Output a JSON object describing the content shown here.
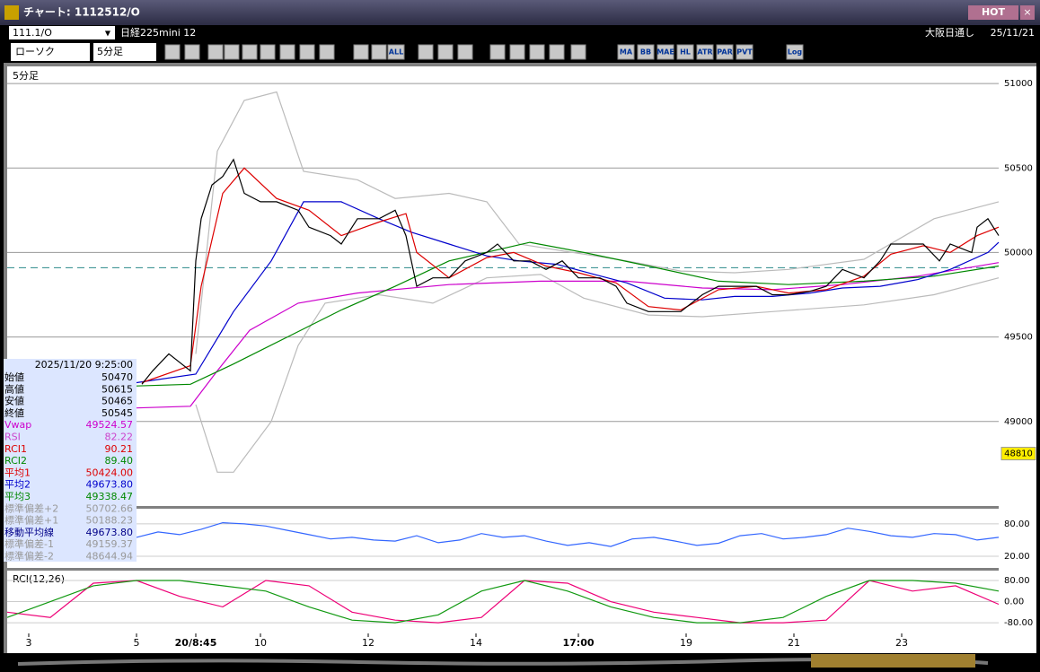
{
  "window": {
    "title": "チャート: 1112512/O",
    "hot": "HOT"
  },
  "toolbar": {
    "symbol": "111.1/O",
    "name": "日経225mini 12",
    "session": "大阪日通し",
    "date": "25/11/21",
    "chart_type": "ローソク",
    "interval": "5分足",
    "icons": [
      "ALL",
      "MA",
      "BB",
      "MAE",
      "HL",
      "ATR",
      "PAR",
      "PVT",
      "Log"
    ]
  },
  "chart_data": [
    {
      "type": "line",
      "title": "5分足",
      "xlim": [
        0,
        184
      ],
      "xticks": [
        {
          "value": 4,
          "label": "3"
        },
        {
          "value": 24,
          "label": "5"
        },
        {
          "value": 35,
          "label": "20/8:45"
        },
        {
          "value": 47,
          "label": "10"
        },
        {
          "value": 67,
          "label": "12"
        },
        {
          "value": 87,
          "label": "14"
        },
        {
          "value": 106,
          "label": "17:00"
        },
        {
          "value": 126,
          "label": "19"
        },
        {
          "value": 146,
          "label": "21"
        },
        {
          "value": 166,
          "label": "23"
        }
      ],
      "ylim": [
        48505,
        51096
      ],
      "yticks": [
        49000,
        49500,
        50000,
        50500,
        51000
      ],
      "grid": true,
      "reference_line": 49910,
      "last_price": 48810,
      "series": [
        {
          "color": "#bbbbbb",
          "x": [
            35,
            39,
            44,
            50,
            55,
            65,
            72,
            82,
            89,
            95,
            105,
            115,
            125,
            135,
            145,
            159,
            172,
            184
          ],
          "values": [
            49400,
            50600,
            50900,
            50950,
            50480,
            50430,
            50320,
            50350,
            50300,
            50050,
            50000,
            49950,
            49890,
            49880,
            49900,
            49960,
            50200,
            50300
          ]
        },
        {
          "color": "#bbbbbb",
          "x": [
            35,
            39,
            42,
            49,
            54,
            59,
            69,
            79,
            89,
            99,
            107,
            119,
            129,
            142,
            159,
            172,
            184
          ],
          "values": [
            49100,
            48700,
            48700,
            49000,
            49450,
            49700,
            49750,
            49700,
            49850,
            49870,
            49730,
            49630,
            49620,
            49650,
            49690,
            49750,
            49850
          ]
        },
        {
          "color": "#cc00cc",
          "x": [
            24,
            34,
            39,
            45,
            54,
            65,
            82,
            99,
            115,
            129,
            142,
            155,
            169,
            184
          ],
          "values": [
            49080,
            49090,
            49300,
            49540,
            49700,
            49760,
            49810,
            49830,
            49830,
            49790,
            49780,
            49810,
            49860,
            49940
          ]
        },
        {
          "color": "#008800",
          "x": [
            24,
            34,
            42,
            52,
            62,
            72,
            82,
            97,
            107,
            119,
            132,
            145,
            159,
            172,
            184
          ],
          "values": [
            49210,
            49220,
            49340,
            49500,
            49660,
            49800,
            49950,
            50060,
            50000,
            49920,
            49830,
            49810,
            49830,
            49860,
            49920
          ]
        },
        {
          "color": "#0000cc",
          "x": [
            24,
            35,
            42,
            49,
            55,
            62,
            69,
            75,
            82,
            89,
            95,
            102,
            109,
            115,
            122,
            129,
            135,
            142,
            149,
            155,
            162,
            169,
            175,
            182,
            184
          ],
          "values": [
            49230,
            49280,
            49650,
            49950,
            50300,
            50300,
            50200,
            50120,
            50050,
            49980,
            49950,
            49930,
            49870,
            49820,
            49730,
            49720,
            49740,
            49740,
            49760,
            49790,
            49800,
            49840,
            49900,
            50000,
            50060
          ]
        },
        {
          "color": "#dd0000",
          "x": [
            25,
            34,
            36,
            40,
            44,
            50,
            56,
            62,
            69,
            74,
            76,
            82,
            89,
            94,
            100,
            106,
            113,
            119,
            125,
            132,
            139,
            145,
            152,
            159,
            164,
            170,
            175,
            180,
            184
          ],
          "values": [
            49230,
            49330,
            49800,
            50350,
            50500,
            50320,
            50250,
            50100,
            50180,
            50230,
            50000,
            49850,
            49970,
            50000,
            49920,
            49880,
            49820,
            49680,
            49660,
            49780,
            49800,
            49760,
            49780,
            49860,
            49990,
            50040,
            50000,
            50100,
            50150
          ]
        },
        {
          "color": "#000000",
          "x": [
            25,
            27,
            30,
            34,
            35,
            36,
            38,
            40,
            42,
            44,
            47,
            50,
            54,
            56,
            60,
            62,
            65,
            69,
            72,
            74,
            76,
            79,
            82,
            85,
            89,
            91,
            94,
            97,
            100,
            103,
            106,
            110,
            113,
            115,
            119,
            122,
            125,
            129,
            132,
            135,
            139,
            142,
            145,
            149,
            152,
            155,
            159,
            162,
            164,
            167,
            170,
            173,
            175,
            179,
            180,
            182,
            184
          ],
          "values": [
            49220,
            49300,
            49400,
            49300,
            49950,
            50200,
            50400,
            50450,
            50550,
            50350,
            50300,
            50300,
            50250,
            50150,
            50100,
            50050,
            50200,
            50200,
            50250,
            50100,
            49800,
            49850,
            49850,
            49950,
            50000,
            50050,
            49950,
            49950,
            49900,
            49950,
            49850,
            49850,
            49800,
            49700,
            49650,
            49650,
            49650,
            49750,
            49800,
            49800,
            49800,
            49750,
            49750,
            49770,
            49800,
            49900,
            49850,
            49950,
            50050,
            50050,
            50050,
            49950,
            50050,
            50000,
            50150,
            50200,
            50100
          ]
        }
      ]
    },
    {
      "type": "line",
      "xlim": [
        0,
        184
      ],
      "ylim": [
        0,
        108
      ],
      "yticks": [
        {
          "value": 80,
          "label": "80.00"
        },
        {
          "value": 20,
          "label": "20.00"
        }
      ],
      "series": [
        {
          "color": "#3366ff",
          "x": [
            24,
            28,
            32,
            36,
            40,
            44,
            48,
            52,
            56,
            60,
            64,
            68,
            72,
            76,
            80,
            84,
            88,
            92,
            96,
            100,
            104,
            108,
            112,
            116,
            120,
            124,
            128,
            132,
            136,
            140,
            144,
            148,
            152,
            156,
            160,
            164,
            168,
            172,
            176,
            180,
            184
          ],
          "values": [
            55,
            65,
            60,
            70,
            82,
            80,
            76,
            68,
            60,
            52,
            55,
            50,
            48,
            58,
            45,
            50,
            62,
            55,
            58,
            48,
            40,
            45,
            38,
            52,
            55,
            48,
            40,
            44,
            58,
            62,
            52,
            55,
            60,
            72,
            66,
            58,
            55,
            62,
            60,
            50,
            55
          ]
        }
      ]
    },
    {
      "type": "line",
      "title": "RCI(12,26)",
      "xlim": [
        0,
        184
      ],
      "ylim": [
        -117,
        114
      ],
      "yticks": [
        {
          "value": 80,
          "label": "80.00"
        },
        {
          "value": 0,
          "label": "0.00"
        },
        {
          "value": -80,
          "label": "-80.00"
        }
      ],
      "series": [
        {
          "color": "#ee0077",
          "x": [
            0,
            8,
            16,
            24,
            32,
            40,
            48,
            56,
            64,
            72,
            80,
            88,
            96,
            104,
            112,
            120,
            128,
            136,
            144,
            152,
            160,
            168,
            176,
            184
          ],
          "values": [
            -40,
            -60,
            70,
            80,
            20,
            -20,
            80,
            60,
            -40,
            -70,
            -80,
            -60,
            80,
            70,
            0,
            -40,
            -60,
            -80,
            -80,
            -70,
            80,
            40,
            60,
            -10
          ]
        },
        {
          "color": "#119911",
          "x": [
            0,
            8,
            16,
            24,
            32,
            40,
            48,
            56,
            64,
            72,
            80,
            88,
            96,
            104,
            112,
            120,
            128,
            136,
            144,
            152,
            160,
            168,
            176,
            184
          ],
          "values": [
            -60,
            0,
            60,
            80,
            80,
            60,
            40,
            -20,
            -70,
            -80,
            -50,
            40,
            80,
            40,
            -20,
            -60,
            -80,
            -80,
            -60,
            20,
            80,
            80,
            70,
            40
          ]
        }
      ]
    }
  ],
  "info_panel": {
    "datetime": "2025/11/20 9:25:00",
    "rows": [
      {
        "label": "始値",
        "value": "50470",
        "color": "#000000"
      },
      {
        "label": "高値",
        "value": "50615",
        "color": "#000000"
      },
      {
        "label": "安値",
        "value": "50465",
        "color": "#000000"
      },
      {
        "label": "終値",
        "value": "50545",
        "color": "#000000"
      },
      {
        "label": "Vwap",
        "value": "49524.57",
        "color": "#cc00cc"
      },
      {
        "label": "RSI",
        "value": "82.22",
        "color": "#cc44cc"
      },
      {
        "label": "RCI1",
        "value": "90.21",
        "color": "#dd0000"
      },
      {
        "label": "RCI2",
        "value": "89.40",
        "color": "#008800"
      },
      {
        "label": "平均1",
        "value": "50424.00",
        "color": "#dd0000"
      },
      {
        "label": "平均2",
        "value": "49673.80",
        "color": "#0000cc"
      },
      {
        "label": "平均3",
        "value": "49338.47",
        "color": "#008800"
      },
      {
        "label": "標準偏差+2",
        "value": "50702.66",
        "color": "#999999"
      },
      {
        "label": "標準偏差+1",
        "value": "50188.23",
        "color": "#999999"
      },
      {
        "label": "移動平均線",
        "value": "49673.80",
        "color": "#000088"
      },
      {
        "label": "標準偏差-1",
        "value": "49159.37",
        "color": "#999999"
      },
      {
        "label": "標準偏差-2",
        "value": "48644.94",
        "color": "#999999"
      }
    ]
  }
}
